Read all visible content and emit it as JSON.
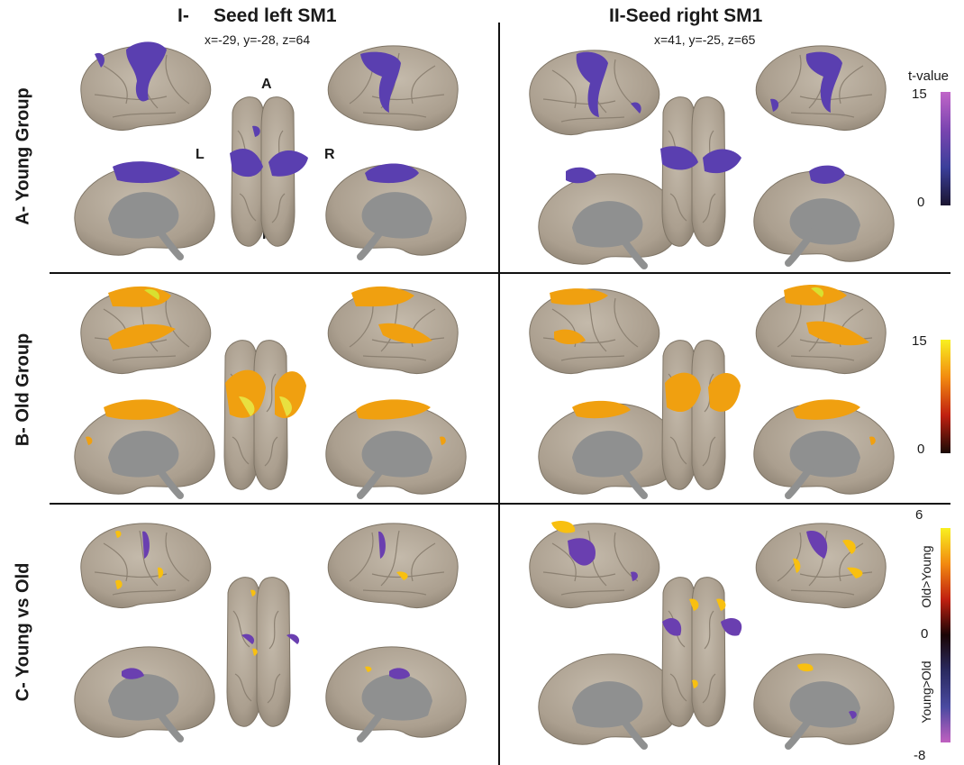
{
  "columns": [
    {
      "title": "Seed left SM1",
      "prefix": "I-",
      "coordinates": "x=-29, y=-28, z=64"
    },
    {
      "title": "II-Seed right SM1",
      "coordinates": "x=41, y=-25, z=65"
    }
  ],
  "rows": [
    {
      "label": "A- Young Group"
    },
    {
      "label": "B- Old Group"
    },
    {
      "label": "C- Young vs Old"
    }
  ],
  "orientation": {
    "anterior": "A",
    "posterior": "P",
    "left": "L",
    "right": "R"
  },
  "colorbars": [
    {
      "title": "t-value",
      "max": "15",
      "min": "0",
      "colors": [
        "#1a1530",
        "#3b3f9a",
        "#7a45b0",
        "#c065c8"
      ]
    },
    {
      "max": "15",
      "min": "0",
      "colors": [
        "#1a0a05",
        "#c02010",
        "#f28a10",
        "#f8f020"
      ]
    },
    {
      "max": "6",
      "mid": "0",
      "min": "-8",
      "upper_label": "Old>Young",
      "lower_label": "Young>Old",
      "colors": [
        "#f8f020",
        "#f28a10",
        "#c02010",
        "#1a0505",
        "#2a2a60",
        "#4a4aa0",
        "#c060c0"
      ]
    }
  ],
  "palette": {
    "brain": "#b5aa9a",
    "brain_dark": "#9a8f80",
    "medial_wall": "#8f9090",
    "young": "#5a3fb0",
    "old": "#f0a010",
    "divider": "#111111"
  }
}
